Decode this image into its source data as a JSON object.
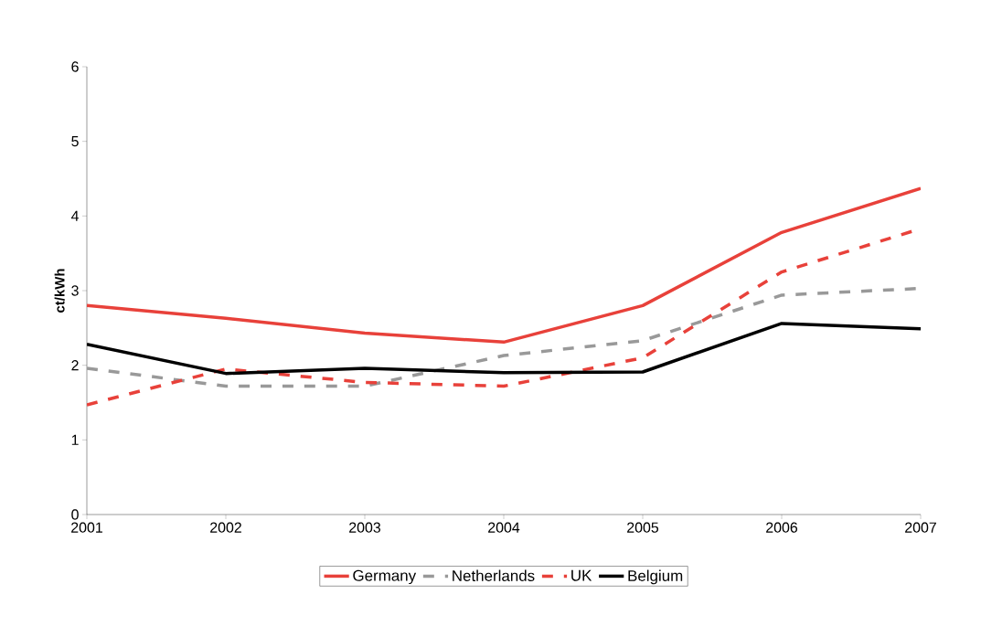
{
  "chart_data": {
    "type": "line",
    "ylabel": "ct/kWh",
    "x": [
      2001,
      2002,
      2003,
      2004,
      2005,
      2006,
      2007
    ],
    "xlim": [
      2001,
      2007
    ],
    "xticks": [
      2001,
      2002,
      2003,
      2004,
      2005,
      2006,
      2007
    ],
    "ylim": [
      0,
      6
    ],
    "yticks": [
      0,
      1,
      2,
      3,
      4,
      5,
      6
    ],
    "grid": false,
    "legend": "bottom",
    "marker": "none",
    "series": [
      {
        "name": "Germany",
        "color": "#e8413a",
        "line_style": "solid",
        "values": [
          2.8,
          2.63,
          2.43,
          2.31,
          2.8,
          3.78,
          4.37
        ]
      },
      {
        "name": "Netherlands",
        "color": "#999999",
        "line_style": "dashed",
        "values": [
          1.96,
          1.72,
          1.72,
          2.13,
          2.33,
          2.94,
          3.03
        ]
      },
      {
        "name": "UK",
        "color": "#e8413a",
        "line_style": "dashed",
        "values": [
          1.47,
          1.95,
          1.77,
          1.72,
          2.1,
          3.25,
          3.83
        ]
      },
      {
        "name": "Belgium",
        "color": "#000000",
        "line_style": "solid",
        "values": [
          2.28,
          1.89,
          1.96,
          1.9,
          1.91,
          2.56,
          2.49
        ]
      }
    ]
  }
}
